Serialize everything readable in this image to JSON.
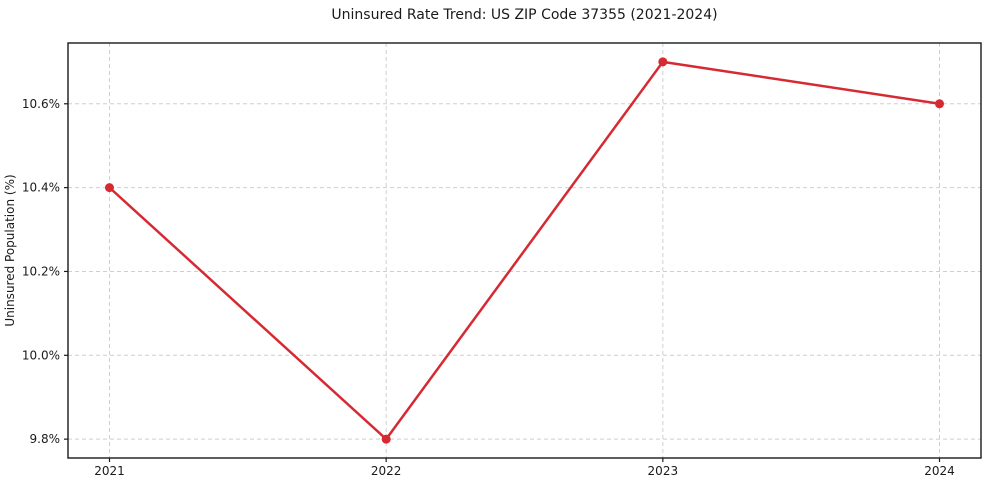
{
  "figure": {
    "background": "#ffffff"
  },
  "chart_data": {
    "type": "line",
    "title": "Uninsured Rate Trend: US ZIP Code 37355 (2021-2024)",
    "xlabel": "",
    "ylabel": "Uninsured Population (%)",
    "x": [
      2021,
      2022,
      2023,
      2024
    ],
    "values": [
      10.4,
      9.8,
      10.7,
      10.6
    ],
    "xticks": {
      "values": [
        2021,
        2022,
        2023,
        2024
      ],
      "labels": [
        "2021",
        "2022",
        "2023",
        "2024"
      ]
    },
    "yticks": {
      "values": [
        9.8,
        10.0,
        10.2,
        10.4,
        10.6
      ],
      "labels": [
        "9.8%",
        "10.0%",
        "10.2%",
        "10.4%",
        "10.6%"
      ]
    },
    "xlim": [
      2020.85,
      2024.15
    ],
    "ylim": [
      9.755,
      10.745
    ],
    "grid": true,
    "grid_style": "dashed",
    "legend": "none",
    "line_color": "#d62a33",
    "grid_color": "#cfcfcf",
    "spine_color": "#1a1a1a",
    "text_color": "#1a1a1a"
  }
}
